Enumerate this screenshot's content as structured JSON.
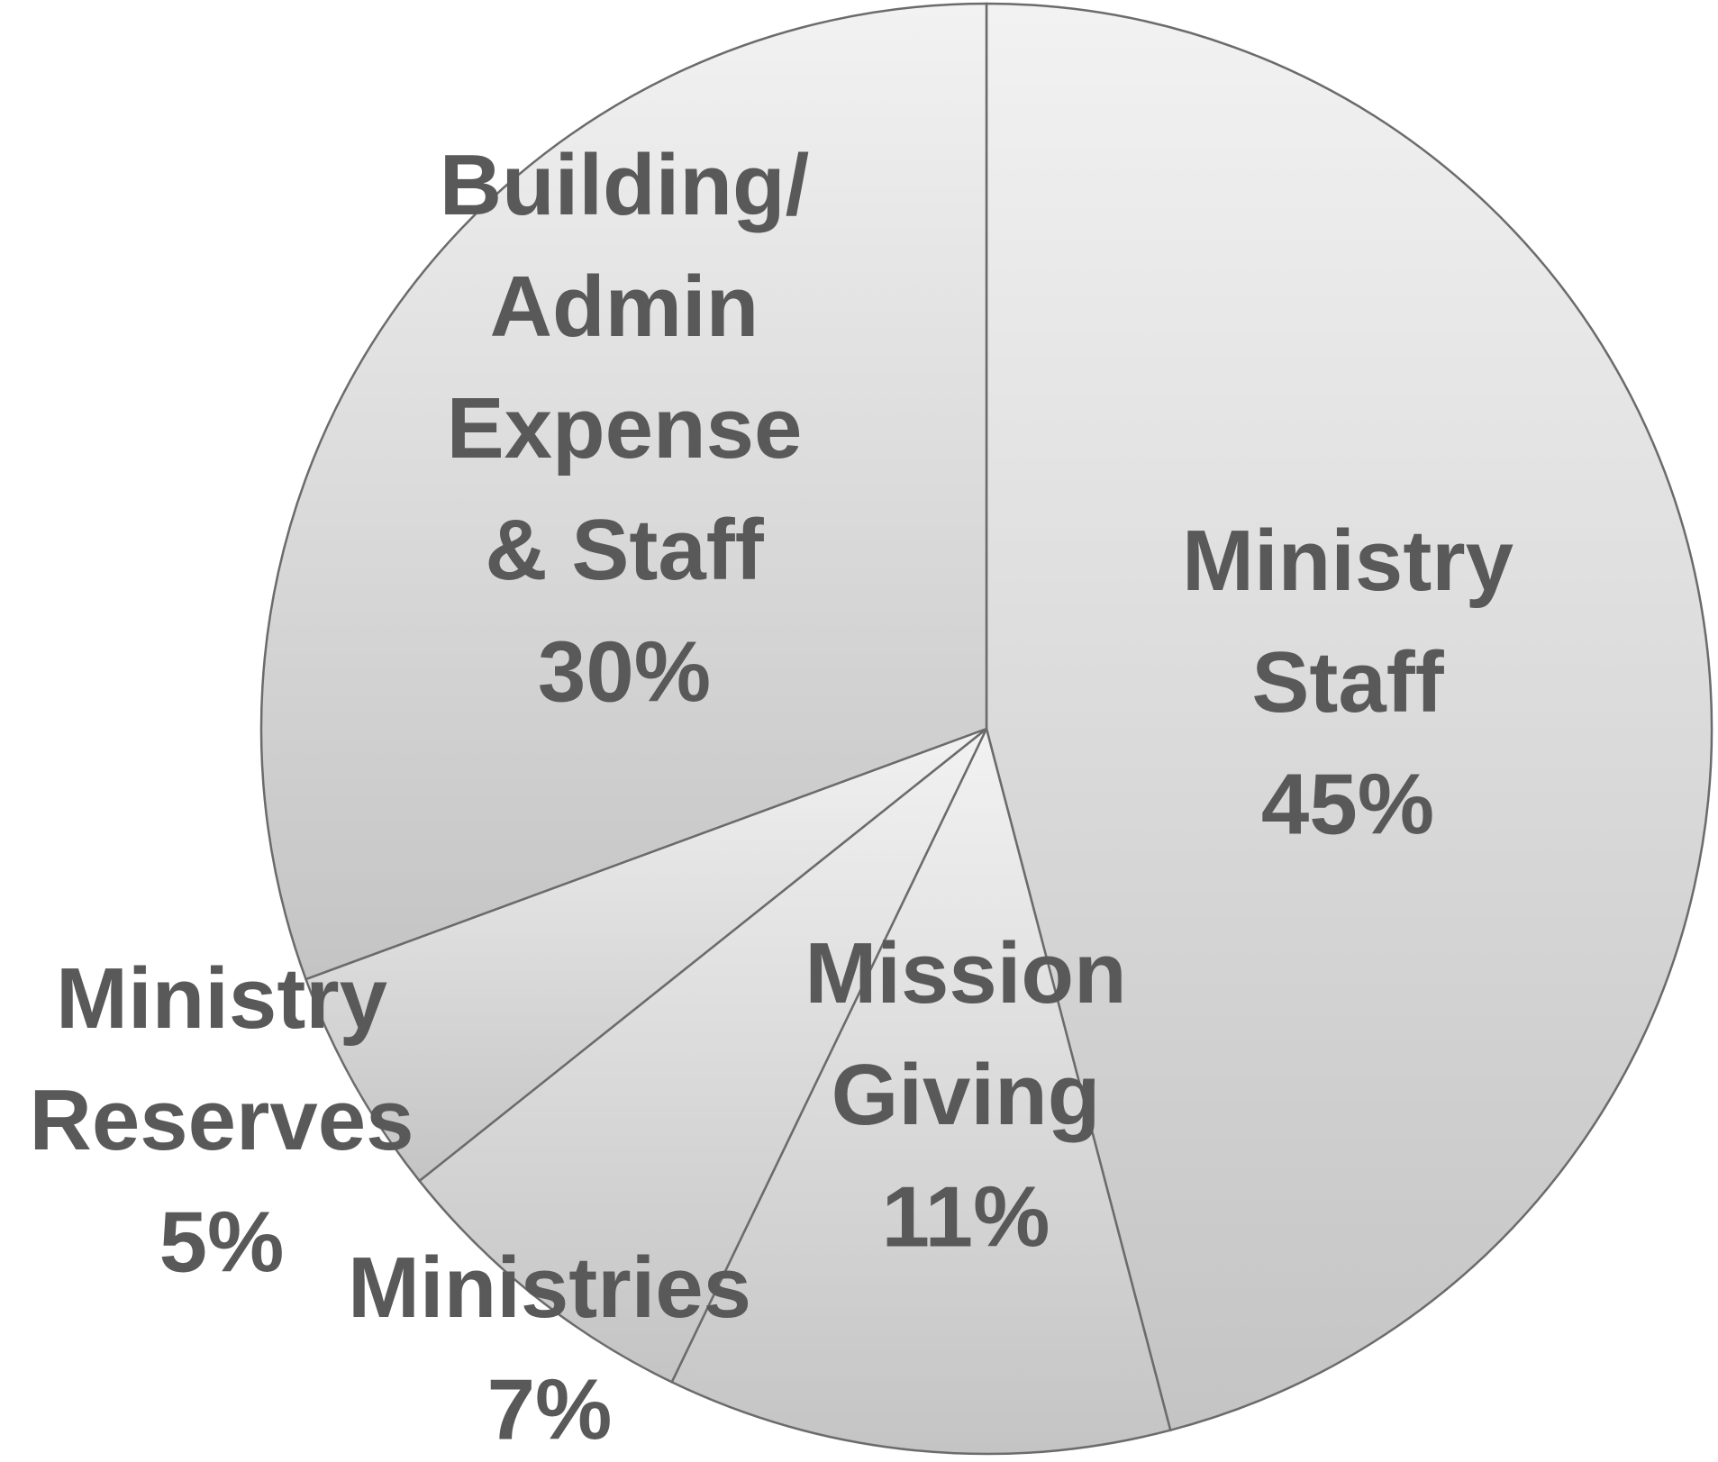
{
  "chart_data": {
    "type": "pie",
    "categories": [
      "Ministry\nStaff",
      "Mission\nGiving",
      "Ministries",
      "Ministry\nReserves",
      "Building/\nAdmin\nExpense\n& Staff"
    ],
    "values": [
      45,
      11,
      7,
      5,
      30
    ],
    "value_labels": [
      "45%",
      "11%",
      "7%",
      "5%",
      "30%"
    ],
    "color": "#dcdcdc"
  }
}
